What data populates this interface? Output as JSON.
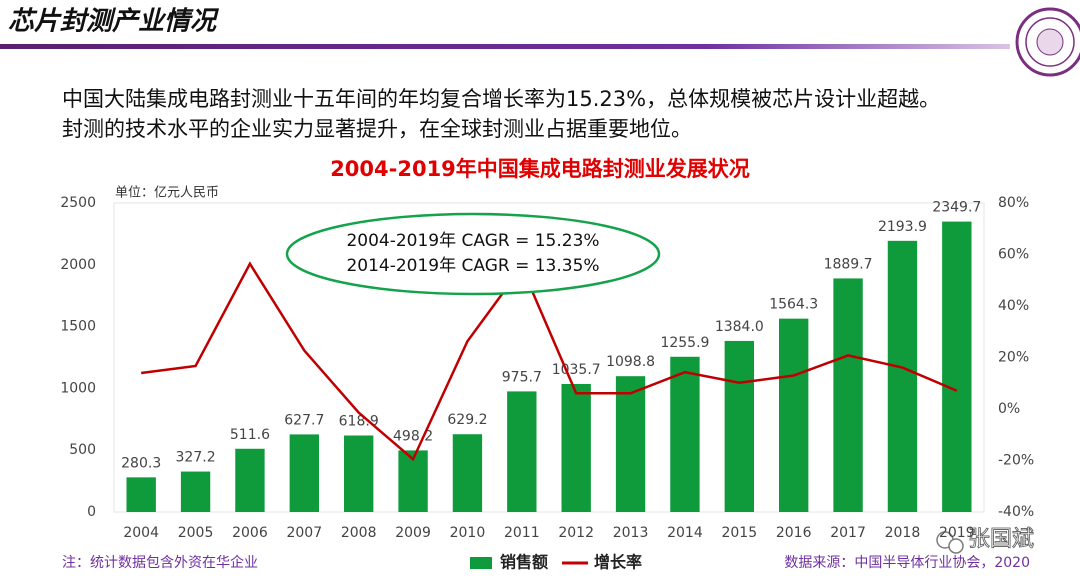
{
  "header": {
    "title": "芯片封测产业情况"
  },
  "body": {
    "lines": [
      "中国大陆集成电路封测业十五年间的年均复合增长率为15.23%，总体规模被芯片设计业超越。",
      "封测的技术水平的企业实力显著提升，在全球封测业占据重要地位。"
    ]
  },
  "chart_data": {
    "type": "bar_line",
    "title": "2004-2019年中国集成电路封测业发展状况",
    "y_label": "单位：亿元人民币",
    "categories": [
      "2004",
      "2005",
      "2006",
      "2007",
      "2008",
      "2009",
      "2010",
      "2011",
      "2012",
      "2013",
      "2014",
      "2015",
      "2016",
      "2017",
      "2018",
      "2019"
    ],
    "series": [
      {
        "name": "销售额",
        "color": "#0f9a3c",
        "values": [
          280.3,
          327.2,
          511.6,
          627.7,
          618.9,
          498.2,
          629.2,
          975.7,
          1035.7,
          1098.8,
          1255.9,
          1384.0,
          1564.3,
          1889.7,
          2193.9,
          2349.7
        ],
        "value_labels": [
          "280.3",
          "327.2",
          "511.6",
          "627.7",
          "618.9",
          "498.2",
          "629.2",
          "975.7",
          "1035.7",
          "1098.8",
          "1255.9",
          "1384.0",
          "1564.3",
          "1889.7",
          "2193.9",
          "2349.7"
        ]
      },
      {
        "name": "增长率",
        "color": "#c00000",
        "axis": "y2",
        "values": [
          14.0,
          16.7,
          56.4,
          22.7,
          -1.4,
          -19.5,
          26.3,
          55.1,
          6.1,
          6.1,
          14.3,
          10.2,
          13.0,
          20.8,
          16.1,
          7.1
        ]
      }
    ],
    "ylim": [
      0,
      2500
    ],
    "yticks": [
      0,
      500,
      1000,
      1500,
      2000,
      2500
    ],
    "y2lim": [
      -40,
      80
    ],
    "y2ticks": [
      {
        "value": -40,
        "label": "-40%"
      },
      {
        "value": -20,
        "label": "-20%"
      },
      {
        "value": 0,
        "label": "0%"
      },
      {
        "value": 20,
        "label": "20%"
      },
      {
        "value": 40,
        "label": "40%"
      },
      {
        "value": 60,
        "label": "60%"
      },
      {
        "value": 80,
        "label": "80%"
      }
    ],
    "grid": false,
    "annotations": [
      "2004-2019年 CAGR = 15.23%",
      "2014-2019年 CAGR = 13.35%"
    ]
  },
  "footnote": "注：统计数据包含外资在华企业",
  "source": "数据来源：中国半导体行业协会，2020",
  "watermark": "张国斌"
}
